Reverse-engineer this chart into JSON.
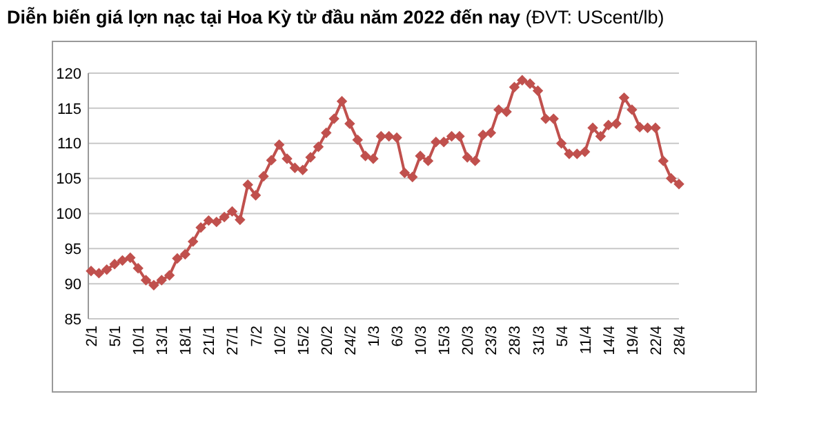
{
  "chart_data": {
    "type": "line",
    "title": "Diễn biến giá lợn nạc tại Hoa Kỳ từ đầu năm 2022 đến nay",
    "subtitle": "(ĐVT: UScent/lb)",
    "categories": [
      "2/1",
      null,
      null,
      "5/1",
      null,
      null,
      "10/1",
      null,
      null,
      "13/1",
      null,
      null,
      "18/1",
      null,
      null,
      "21/1",
      null,
      null,
      "27/1",
      null,
      null,
      "7/2",
      null,
      null,
      "10/2",
      null,
      null,
      "15/2",
      null,
      null,
      "20/2",
      null,
      null,
      "24/2",
      null,
      null,
      "1/3",
      null,
      null,
      "6/3",
      null,
      null,
      "10/3",
      null,
      null,
      "15/3",
      null,
      null,
      "20/3",
      null,
      null,
      "23/3",
      null,
      null,
      "28/3",
      null,
      null,
      "31/3",
      null,
      null,
      "5/4",
      null,
      null,
      "11/4",
      null,
      null,
      "14/4",
      null,
      null,
      "19/4",
      null,
      null,
      "22/4",
      null,
      null,
      "28/4"
    ],
    "series": [
      {
        "color": "#c0504d",
        "values": [
          91.8,
          91.5,
          92.0,
          92.8,
          93.3,
          93.7,
          92.2,
          90.5,
          89.8,
          90.5,
          91.2,
          93.6,
          94.2,
          96,
          98,
          99,
          98.8,
          99.5,
          100.3,
          99.1,
          104.1,
          102.6,
          105.3,
          107.6,
          109.8,
          107.8,
          106.5,
          106.2,
          108,
          109.5,
          111.5,
          113.5,
          116,
          112.8,
          110.5,
          108.2,
          107.8,
          111,
          111,
          110.8,
          105.8,
          105.2,
          108.2,
          107.5,
          110.2,
          110.2,
          111,
          111,
          108,
          107.5,
          111.2,
          111.5,
          114.8,
          114.5,
          118,
          119,
          118.5,
          117.5,
          113.5,
          113.5,
          110,
          108.5,
          108.5,
          108.8,
          112.2,
          111,
          112.6,
          112.8,
          116.5,
          114.8,
          112.3,
          112.2,
          112.2,
          107.5,
          105,
          104.2
        ]
      }
    ],
    "ylim": [
      85,
      120
    ],
    "yticks": [
      85,
      90,
      95,
      100,
      105,
      110,
      115,
      120
    ],
    "grid": "y",
    "marker": "diamond",
    "line_style": "solid"
  }
}
